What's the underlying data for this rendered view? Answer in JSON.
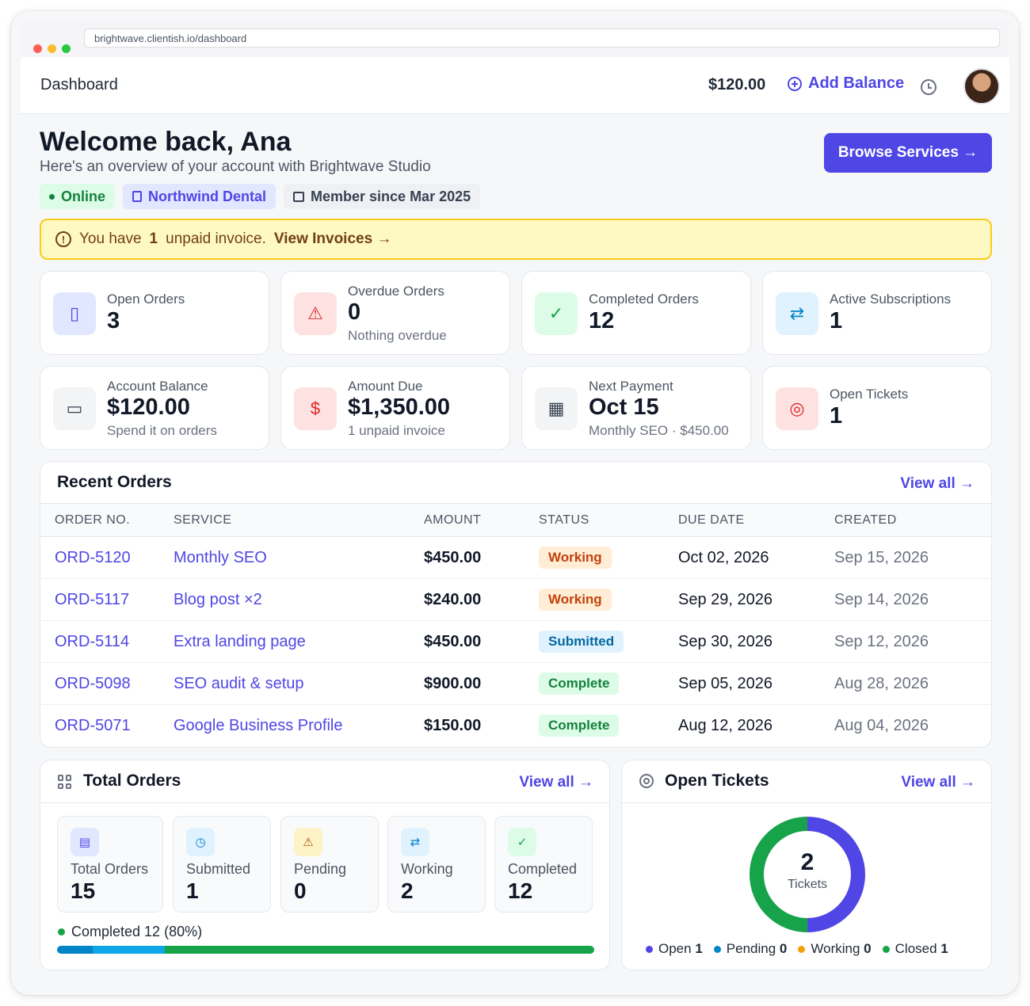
{
  "browser": {
    "url": "brightwave.clientish.io/dashboard"
  },
  "topbar": {
    "title": "Dashboard",
    "balance": "$120.00",
    "add_balance": "Add Balance"
  },
  "welcome": {
    "heading": "Welcome back, Ana",
    "subheading": "Here's an overview of your account with Brightwave Studio",
    "chip_online": "Online",
    "chip_company": "Northwind Dental",
    "chip_member": "Member since Mar 2025",
    "browse_button": "Browse Services →"
  },
  "alert": {
    "prefix": "You have",
    "count": "1",
    "suffix": "unpaid invoice.",
    "link": "View Invoices →"
  },
  "stats": [
    {
      "label": "Open Orders",
      "value": "3",
      "note": ""
    },
    {
      "label": "Overdue Orders",
      "value": "0",
      "note": "Nothing overdue"
    },
    {
      "label": "Completed Orders",
      "value": "12",
      "note": ""
    },
    {
      "label": "Active Subscriptions",
      "value": "1",
      "note": ""
    },
    {
      "label": "Account Balance",
      "value": "$120.00",
      "note": "Spend it on orders"
    },
    {
      "label": "Amount Due",
      "value": "$1,350.00",
      "note": "1 unpaid invoice"
    },
    {
      "label": "Next Payment",
      "value": "Oct 15",
      "note": "Monthly SEO · $450.00"
    },
    {
      "label": "Open Tickets",
      "value": "1",
      "note": ""
    }
  ],
  "recent_orders": {
    "title": "Recent Orders",
    "view_all": "View all →",
    "columns": [
      "ORDER NO.",
      "SERVICE",
      "AMOUNT",
      "STATUS",
      "DUE DATE",
      "CREATED"
    ],
    "rows": [
      {
        "order": "ORD-5120",
        "service": "Monthly SEO",
        "amount": "$450.00",
        "status": "Working",
        "due": "Oct 02, 2026",
        "created": "Sep 15, 2026"
      },
      {
        "order": "ORD-5117",
        "service": "Blog post ×2",
        "amount": "$240.00",
        "status": "Working",
        "due": "Sep 29, 2026",
        "created": "Sep 14, 2026"
      },
      {
        "order": "ORD-5114",
        "service": "Extra landing page",
        "amount": "$450.00",
        "status": "Submitted",
        "due": "Sep 30, 2026",
        "created": "Sep 12, 2026"
      },
      {
        "order": "ORD-5098",
        "service": "SEO audit & setup",
        "amount": "$900.00",
        "status": "Complete",
        "due": "Sep 05, 2026",
        "created": "Aug 28, 2026"
      },
      {
        "order": "ORD-5071",
        "service": "Google Business Profile",
        "amount": "$150.00",
        "status": "Complete",
        "due": "Aug 12, 2026",
        "created": "Aug 04, 2026"
      }
    ]
  },
  "total_orders": {
    "title": "Total Orders",
    "view_all": "View all →",
    "items": [
      {
        "label": "Total Orders",
        "value": "15"
      },
      {
        "label": "Submitted",
        "value": "1"
      },
      {
        "label": "Pending",
        "value": "0"
      },
      {
        "label": "Working",
        "value": "2"
      },
      {
        "label": "Completed",
        "value": "12"
      }
    ],
    "completed_text": "Completed 12 (80%)",
    "progress": {
      "submitted": 1,
      "working": 2,
      "completed": 12,
      "total": 15
    }
  },
  "open_tickets": {
    "title": "Open Tickets",
    "view_all": "View all →",
    "center_value": "2",
    "center_label": "Tickets",
    "legend": [
      {
        "label": "Open",
        "value": "1",
        "color": "#4f46e5"
      },
      {
        "label": "Pending",
        "value": "0",
        "color": "#0284c7"
      },
      {
        "label": "Working",
        "value": "0",
        "color": "#f59e0b"
      },
      {
        "label": "Closed",
        "value": "1",
        "color": "#16a34a"
      }
    ]
  },
  "colors": {
    "accent": "#4f46e5",
    "warning_bg": "#fef9c3",
    "success": "#16a34a",
    "info": "#0284c7"
  }
}
